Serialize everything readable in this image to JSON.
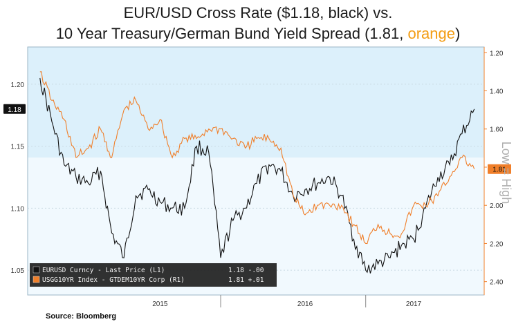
{
  "title": {
    "line1": "EUR/USD Cross Rate ($1.18, black) vs.",
    "line2_prefix": "10 Year Treasury/German Bund Yield Spread (1.81, ",
    "line2_orange": "orange",
    "line2_suffix": ")"
  },
  "source": "Source: Bloomberg",
  "chart_data": {
    "type": "line",
    "left_axis": {
      "ticks": [
        "1.20",
        "1.15",
        "1.10",
        "1.05"
      ],
      "range": [
        1.03,
        1.23
      ]
    },
    "right_axis": {
      "ticks": [
        "1.20",
        "1.40",
        "1.60",
        "1.80",
        "2.00",
        "2.20",
        "2.40"
      ],
      "range": [
        1.17,
        2.47
      ],
      "inverted": true
    },
    "x_axis": {
      "labels": [
        "2015",
        "2016",
        "2017"
      ]
    },
    "side_label": "Low = High",
    "last_values": {
      "left": "1.18",
      "right": "1.81"
    },
    "legend": [
      {
        "text": "EURUSD Curncy - Last Price (L1)",
        "value": "1.18 -.00",
        "color": "#111111"
      },
      {
        "text": "USGG10YR Index - GTDEM10YR Corp (R1)",
        "value": "1.81 +.01",
        "color": "#f07f2a"
      }
    ],
    "series": [
      {
        "axis": "left",
        "color": "#111111",
        "x": [
          "2014-09",
          "2014-10",
          "2014-11",
          "2014-12",
          "2015-01",
          "2015-02",
          "2015-03",
          "2015-04",
          "2015-05",
          "2015-06",
          "2015-07",
          "2015-08",
          "2015-09",
          "2015-10",
          "2015-11",
          "2015-12",
          "2016-01",
          "2016-02",
          "2016-03",
          "2016-04",
          "2016-05",
          "2016-06",
          "2016-07",
          "2016-08",
          "2016-09",
          "2016-10",
          "2016-11",
          "2016-12",
          "2017-01",
          "2017-02",
          "2017-03",
          "2017-04",
          "2017-05",
          "2017-06",
          "2017-07",
          "2017-08",
          "2017-09"
        ],
        "values": [
          1.205,
          1.17,
          1.135,
          1.125,
          1.12,
          1.13,
          1.08,
          1.06,
          1.11,
          1.115,
          1.105,
          1.1,
          1.1,
          1.15,
          1.145,
          1.06,
          1.09,
          1.1,
          1.12,
          1.135,
          1.13,
          1.11,
          1.115,
          1.12,
          1.125,
          1.11,
          1.075,
          1.05,
          1.055,
          1.06,
          1.07,
          1.075,
          1.1,
          1.125,
          1.135,
          1.16,
          1.18
        ]
      },
      {
        "axis": "right",
        "color": "#f07f2a",
        "x": [
          "2014-09",
          "2014-10",
          "2014-11",
          "2014-12",
          "2015-01",
          "2015-02",
          "2015-03",
          "2015-04",
          "2015-05",
          "2015-06",
          "2015-07",
          "2015-08",
          "2015-09",
          "2015-10",
          "2015-11",
          "2015-12",
          "2016-01",
          "2016-02",
          "2016-03",
          "2016-04",
          "2016-05",
          "2016-06",
          "2016-07",
          "2016-08",
          "2016-09",
          "2016-10",
          "2016-11",
          "2016-12",
          "2017-01",
          "2017-02",
          "2017-03",
          "2017-04",
          "2017-05",
          "2017-06",
          "2017-07",
          "2017-08",
          "2017-09"
        ],
        "values": [
          1.3,
          1.45,
          1.55,
          1.75,
          1.7,
          1.6,
          1.75,
          1.5,
          1.45,
          1.6,
          1.55,
          1.75,
          1.65,
          1.65,
          1.6,
          1.6,
          1.65,
          1.7,
          1.65,
          1.65,
          1.7,
          1.95,
          2.05,
          2.0,
          2.0,
          2.0,
          2.1,
          2.2,
          2.1,
          2.15,
          2.15,
          2.0,
          2.0,
          1.95,
          1.85,
          1.75,
          1.81
        ]
      }
    ]
  }
}
